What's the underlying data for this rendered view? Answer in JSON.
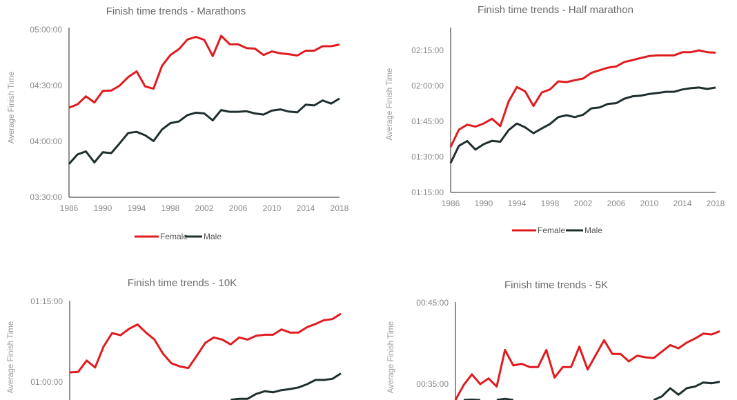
{
  "colors": {
    "female": "#e01b1f",
    "male": "#1f2e2e"
  },
  "chart_data": [
    {
      "type": "line",
      "title": "Finish time trends - Marathons",
      "ylabel": "Average Finish Time",
      "xlabel": "",
      "ylim": [
        210,
        300
      ],
      "yticks": [
        210,
        240,
        270,
        300
      ],
      "ytick_labels": [
        "03:30:00",
        "04:00:00",
        "04:30:00",
        "05:00:00"
      ],
      "xticks": [
        1986,
        1990,
        1994,
        1998,
        2002,
        2006,
        2010,
        2014,
        2018
      ],
      "xtick_labels": [
        "1986",
        "1990",
        "1994",
        "1998",
        "2002",
        "2006",
        "2010",
        "2014",
        "2018"
      ],
      "y_unit": "minutes",
      "legend": "bottom",
      "grid": false,
      "x": [
        1986,
        1987,
        1988,
        1989,
        1990,
        1991,
        1992,
        1993,
        1994,
        1995,
        1996,
        1997,
        1998,
        1999,
        2000,
        2001,
        2002,
        2003,
        2004,
        2005,
        2006,
        2007,
        2008,
        2009,
        2010,
        2011,
        2012,
        2013,
        2014,
        2015,
        2016,
        2017,
        2018
      ],
      "series": [
        {
          "name": "Female",
          "values": [
            258.1,
            259.9,
            264.2,
            260.9,
            267.1,
            267.3,
            270.0,
            274.5,
            277.6,
            269.5,
            268.3,
            280.6,
            286.4,
            289.5,
            294.7,
            296.1,
            294.5,
            285.8,
            296.7,
            292.2,
            292.1,
            290.1,
            289.8,
            286.4,
            288.3,
            287.3,
            286.8,
            286.1,
            288.7,
            288.7,
            291.1,
            291.1,
            292.0
          ]
        },
        {
          "name": "Male",
          "values": [
            227.9,
            233.0,
            234.6,
            228.7,
            234.2,
            233.7,
            239.0,
            244.5,
            245.1,
            243.3,
            240.2,
            246.4,
            249.8,
            250.7,
            254.1,
            255.4,
            255.0,
            251.3,
            256.8,
            255.9,
            255.9,
            256.2,
            255.0,
            254.4,
            256.5,
            257.2,
            256.0,
            255.6,
            259.7,
            259.3,
            262.0,
            260.3,
            263.0
          ]
        }
      ]
    },
    {
      "type": "line",
      "title": "Finish time trends - Half marathon",
      "ylabel": "Average Finish Time",
      "xlabel": "",
      "ylim": [
        75,
        135
      ],
      "yticks": [
        75,
        90,
        105,
        120,
        135
      ],
      "ytick_labels": [
        "01:15:00",
        "01:30:00",
        "01:45:00",
        "02:00:00",
        "02:15:00"
      ],
      "xticks": [
        1986,
        1990,
        1994,
        1998,
        2002,
        2006,
        2010,
        2014,
        2018
      ],
      "xtick_labels": [
        "1986",
        "1990",
        "1994",
        "1998",
        "2002",
        "2006",
        "2010",
        "2014",
        "2018"
      ],
      "y_unit": "minutes",
      "legend": "bottom",
      "grid": false,
      "x": [
        1986,
        1987,
        1988,
        1989,
        1990,
        1991,
        1992,
        1993,
        1994,
        1995,
        1996,
        1997,
        1998,
        1999,
        2000,
        2001,
        2002,
        2003,
        2004,
        2005,
        2006,
        2007,
        2008,
        2009,
        2010,
        2011,
        2012,
        2013,
        2014,
        2015,
        2016,
        2017,
        2018
      ],
      "series": [
        {
          "name": "Female",
          "values": [
            94.2,
            101.5,
            103.6,
            102.8,
            104.1,
            106.1,
            103.0,
            113.4,
            119.5,
            117.7,
            111.5,
            117.2,
            118.5,
            121.9,
            121.6,
            122.4,
            123.1,
            125.5,
            126.6,
            127.7,
            128.2,
            130.1,
            130.9,
            131.8,
            132.6,
            132.9,
            132.9,
            132.9,
            134.2,
            134.2,
            135.0,
            134.2,
            134.0
          ]
        },
        {
          "name": "Male",
          "values": [
            87.4,
            94.7,
            96.7,
            93.1,
            95.4,
            96.8,
            96.4,
            101.3,
            104.1,
            102.5,
            100.0,
            102.0,
            103.9,
            106.8,
            107.6,
            106.8,
            107.8,
            110.5,
            110.9,
            112.4,
            112.7,
            114.6,
            115.6,
            115.9,
            116.6,
            117.0,
            117.5,
            117.5,
            118.5,
            119.0,
            119.3,
            118.7,
            119.3
          ]
        }
      ]
    },
    {
      "type": "line",
      "title": "Finish time trends - 10K",
      "ylabel": "Average Finish Time",
      "xlabel": "",
      "yticks": [
        60,
        75
      ],
      "ytick_labels": [
        "01:00:00",
        "01:15:00"
      ],
      "y_unit": "minutes",
      "grid": false,
      "x": [
        1986,
        1987,
        1988,
        1989,
        1990,
        1991,
        1992,
        1993,
        1994,
        1995,
        1996,
        1997,
        1998,
        1999,
        2000,
        2001,
        2002,
        2003,
        2004,
        2005,
        2006,
        2007,
        2008,
        2009,
        2010,
        2011,
        2012,
        2013,
        2014,
        2015,
        2016,
        2017,
        2018
      ],
      "series": [
        {
          "name": "Female",
          "values": [
            61.8,
            61.9,
            64.0,
            62.7,
            66.6,
            69.1,
            68.7,
            69.9,
            70.7,
            69.2,
            67.9,
            65.3,
            63.5,
            62.9,
            62.6,
            64.9,
            67.3,
            68.3,
            67.9,
            67.0,
            68.3,
            67.9,
            68.6,
            68.8,
            68.8,
            69.8,
            69.2,
            69.2,
            70.2,
            70.8,
            71.5,
            71.7,
            72.7
          ]
        },
        {
          "name": "Male",
          "values": [
            null,
            null,
            null,
            null,
            null,
            null,
            null,
            null,
            null,
            null,
            null,
            null,
            null,
            null,
            null,
            null,
            null,
            null,
            null,
            56.7,
            56.9,
            56.9,
            57.8,
            58.3,
            58.1,
            58.5,
            58.7,
            59.0,
            59.6,
            60.4,
            60.4,
            60.6,
            61.6
          ]
        }
      ]
    },
    {
      "type": "line",
      "title": "Finish time trends - 5K",
      "ylabel": "Average Finish Time",
      "xlabel": "",
      "yticks": [
        35,
        45
      ],
      "ytick_labels": [
        "00:35:00",
        "00:45:00"
      ],
      "y_unit": "minutes",
      "grid": false,
      "x": [
        1986,
        1987,
        1988,
        1989,
        1990,
        1991,
        1992,
        1993,
        1994,
        1995,
        1996,
        1997,
        1998,
        1999,
        2000,
        2001,
        2002,
        2003,
        2004,
        2005,
        2006,
        2007,
        2008,
        2009,
        2010,
        2011,
        2012,
        2013,
        2014,
        2015,
        2016,
        2017,
        2018
      ],
      "series": [
        {
          "name": "Female",
          "values": [
            32.8,
            34.9,
            36.2,
            35.0,
            35.7,
            34.7,
            39.2,
            37.3,
            37.5,
            37.1,
            37.1,
            39.2,
            35.8,
            37.1,
            37.1,
            39.6,
            36.8,
            38.6,
            40.4,
            38.7,
            38.7,
            37.8,
            38.5,
            38.3,
            38.2,
            39.0,
            39.8,
            39.4,
            40.1,
            40.6,
            41.2,
            41.1,
            41.5
          ]
        },
        {
          "name": "Male",
          "values": [
            null,
            32.4,
            33.1,
            32.5,
            null,
            32.5,
            33.2,
            32.5,
            null,
            null,
            null,
            null,
            null,
            null,
            null,
            null,
            null,
            null,
            null,
            null,
            null,
            null,
            null,
            null,
            32.5,
            33.5,
            34.5,
            33.7,
            34.5,
            34.7,
            35.2,
            35.1,
            35.3
          ]
        }
      ]
    }
  ]
}
